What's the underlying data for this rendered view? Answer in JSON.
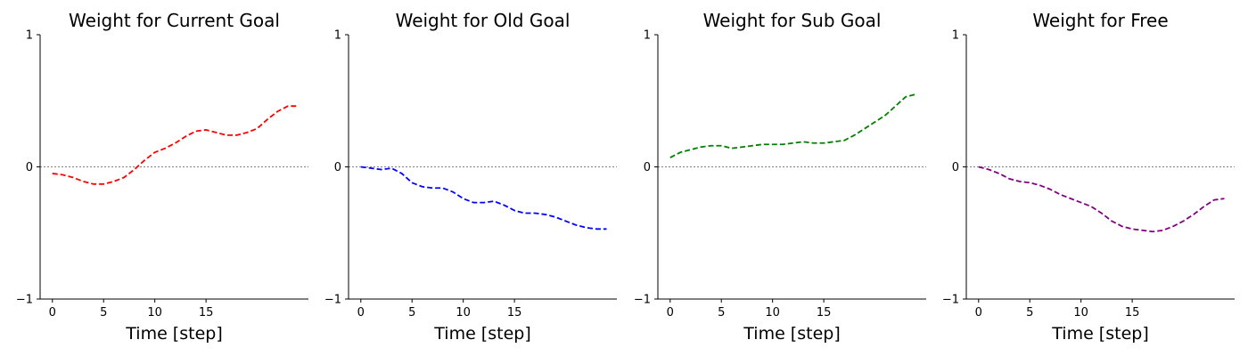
{
  "chart_data": [
    {
      "type": "line",
      "title": "Weight for Current Goal",
      "xlabel": "Time [step]",
      "ylabel": "",
      "xlim": [
        -1.2,
        25
      ],
      "ylim": [
        -1,
        1
      ],
      "xticks": [
        0,
        5,
        10,
        15
      ],
      "yticks": [
        -1,
        0,
        1
      ],
      "zero_line": true,
      "color": "#ff0000",
      "x": [
        0,
        1,
        2,
        3,
        4,
        5,
        6,
        7,
        8,
        9,
        10,
        11,
        12,
        13,
        14,
        15,
        16,
        17,
        18,
        19,
        20,
        21,
        22,
        23,
        24
      ],
      "y": [
        -0.05,
        -0.06,
        -0.08,
        -0.11,
        -0.13,
        -0.13,
        -0.11,
        -0.08,
        -0.02,
        0.05,
        0.11,
        0.14,
        0.18,
        0.23,
        0.27,
        0.28,
        0.26,
        0.24,
        0.24,
        0.26,
        0.29,
        0.36,
        0.42,
        0.46,
        0.46
      ]
    },
    {
      "type": "line",
      "title": "Weight for Old Goal",
      "xlabel": "Time [step]",
      "ylabel": "",
      "xlim": [
        -1.2,
        25
      ],
      "ylim": [
        -1,
        1
      ],
      "xticks": [
        0,
        5,
        10,
        15
      ],
      "yticks": [
        -1,
        0,
        1
      ],
      "zero_line": true,
      "color": "#0000ff",
      "x": [
        0,
        1,
        2,
        3,
        4,
        5,
        6,
        7,
        8,
        9,
        10,
        11,
        12,
        13,
        14,
        15,
        16,
        17,
        18,
        19,
        20,
        21,
        22,
        23,
        24
      ],
      "y": [
        0.0,
        -0.01,
        -0.02,
        -0.01,
        -0.05,
        -0.12,
        -0.15,
        -0.16,
        -0.16,
        -0.19,
        -0.24,
        -0.27,
        -0.27,
        -0.26,
        -0.29,
        -0.33,
        -0.35,
        -0.35,
        -0.36,
        -0.38,
        -0.41,
        -0.44,
        -0.46,
        -0.47,
        -0.47
      ]
    },
    {
      "type": "line",
      "title": "Weight for Sub Goal",
      "xlabel": "Time [step]",
      "ylabel": "",
      "xlim": [
        -1.2,
        25
      ],
      "ylim": [
        -1,
        1
      ],
      "xticks": [
        0,
        5,
        10,
        15
      ],
      "yticks": [
        -1,
        0,
        1
      ],
      "zero_line": true,
      "color": "#008000",
      "x": [
        0,
        1,
        2,
        3,
        4,
        5,
        6,
        7,
        8,
        9,
        10,
        11,
        12,
        13,
        14,
        15,
        16,
        17,
        18,
        19,
        20,
        21,
        22,
        23,
        24
      ],
      "y": [
        0.07,
        0.11,
        0.13,
        0.15,
        0.16,
        0.16,
        0.14,
        0.15,
        0.16,
        0.17,
        0.17,
        0.17,
        0.18,
        0.19,
        0.18,
        0.18,
        0.19,
        0.2,
        0.24,
        0.29,
        0.34,
        0.39,
        0.46,
        0.53,
        0.55
      ]
    },
    {
      "type": "line",
      "title": "Weight for Free",
      "xlabel": "Time [step]",
      "ylabel": "",
      "xlim": [
        -1.2,
        25
      ],
      "ylim": [
        -1,
        1
      ],
      "xticks": [
        0,
        5,
        10,
        15
      ],
      "yticks": [
        -1,
        0,
        1
      ],
      "zero_line": true,
      "color": "#800080",
      "x": [
        0,
        1,
        2,
        3,
        4,
        5,
        6,
        7,
        8,
        9,
        10,
        11,
        12,
        13,
        14,
        15,
        16,
        17,
        18,
        19,
        20,
        21,
        22,
        23,
        24
      ],
      "y": [
        0.0,
        -0.02,
        -0.05,
        -0.09,
        -0.11,
        -0.12,
        -0.14,
        -0.17,
        -0.21,
        -0.24,
        -0.27,
        -0.3,
        -0.35,
        -0.41,
        -0.45,
        -0.47,
        -0.48,
        -0.49,
        -0.48,
        -0.45,
        -0.41,
        -0.36,
        -0.3,
        -0.25,
        -0.24
      ]
    }
  ]
}
